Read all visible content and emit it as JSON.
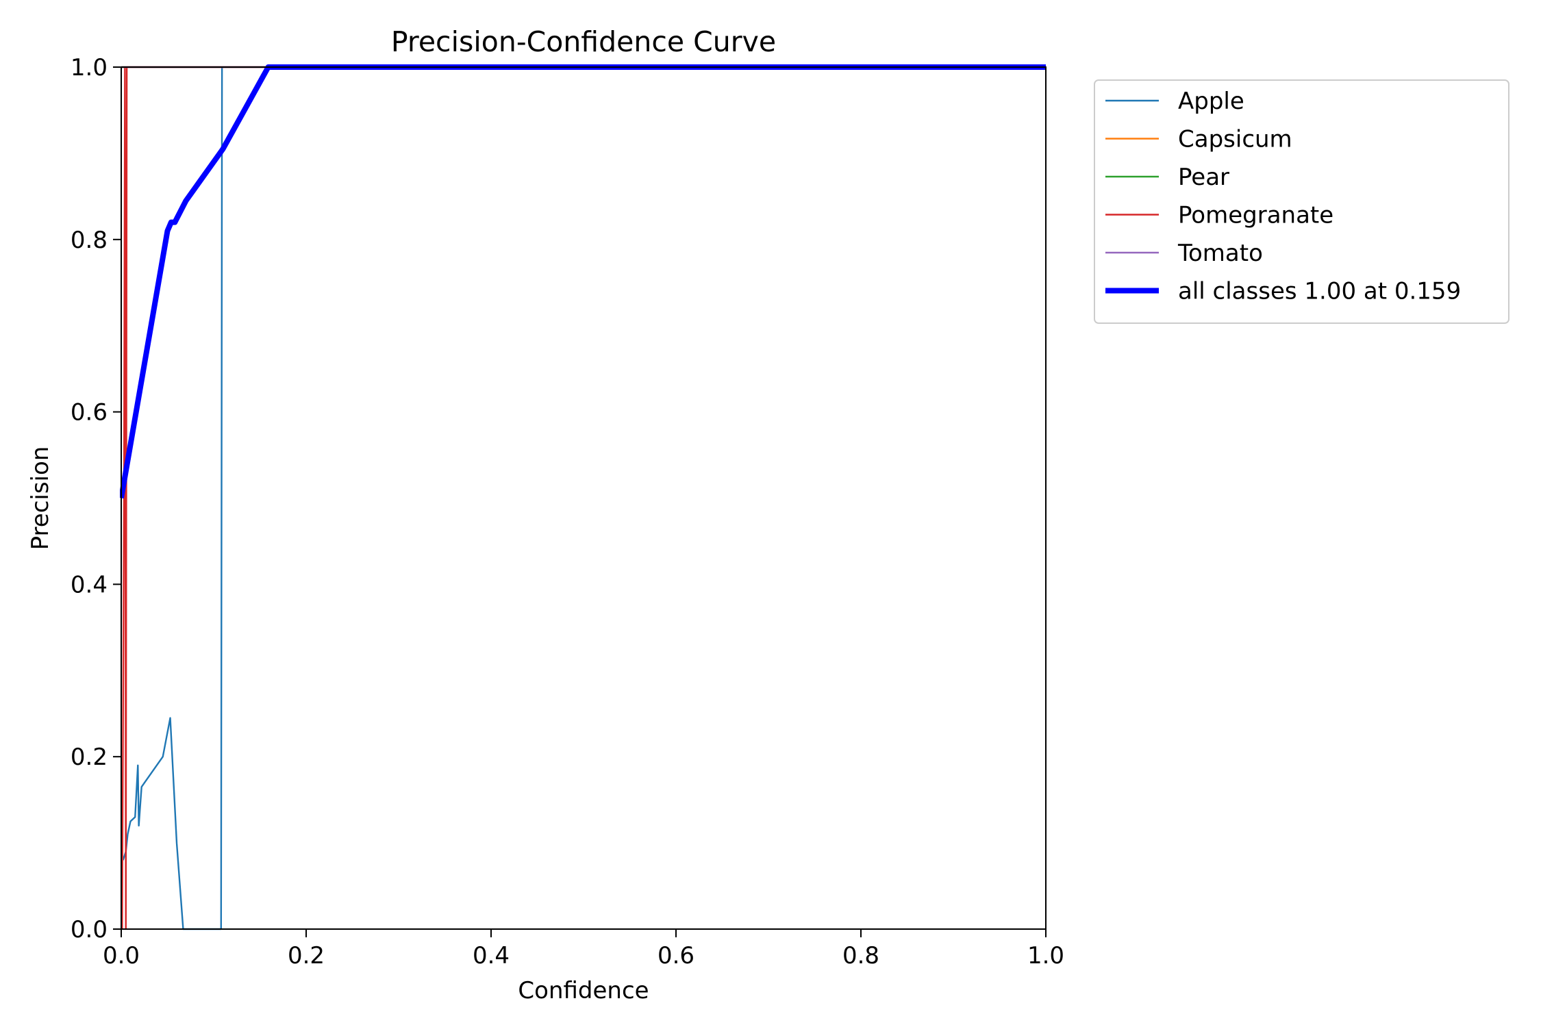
{
  "chart_data": {
    "type": "line",
    "title": "Precision-Confidence Curve",
    "xlabel": "Confidence",
    "ylabel": "Precision",
    "xlim": [
      0,
      1
    ],
    "ylim": [
      0,
      1
    ],
    "xticks": [
      "0.0",
      "0.2",
      "0.4",
      "0.6",
      "0.8",
      "1.0"
    ],
    "yticks": [
      "0.0",
      "0.2",
      "0.4",
      "0.6",
      "0.8",
      "1.0"
    ],
    "grid": false,
    "legend_placement": "outside-upper-right",
    "series": [
      {
        "name": "Apple",
        "color": "#1f77b4",
        "width": "thin",
        "points": [
          [
            0.002,
            0.08
          ],
          [
            0.005,
            0.09
          ],
          [
            0.007,
            0.11
          ],
          [
            0.01,
            0.125
          ],
          [
            0.015,
            0.13
          ],
          [
            0.018,
            0.19
          ],
          [
            0.019,
            0.12
          ],
          [
            0.022,
            0.165
          ],
          [
            0.045,
            0.2
          ],
          [
            0.053,
            0.245
          ],
          [
            0.06,
            0.1
          ],
          [
            0.067,
            0.0
          ],
          [
            0.108,
            0.0
          ],
          [
            0.109,
            1.0
          ],
          [
            1.0,
            1.0
          ]
        ]
      },
      {
        "name": "Capsicum",
        "color": "#ff7f0e",
        "width": "thin",
        "points": [
          [
            0.0,
            1.0
          ],
          [
            1.0,
            1.0
          ]
        ]
      },
      {
        "name": "Pear",
        "color": "#2ca02c",
        "width": "thin",
        "points": [
          [
            0.0,
            1.0
          ],
          [
            1.0,
            1.0
          ]
        ]
      },
      {
        "name": "Pomegranate",
        "color": "#d62728",
        "width": "thin",
        "points": [
          [
            0.001,
            0.0
          ],
          [
            0.003,
            0.5
          ],
          [
            0.004,
            1.0
          ],
          [
            0.005,
            0.0
          ],
          [
            0.006,
            1.0
          ],
          [
            1.0,
            1.0
          ]
        ]
      },
      {
        "name": "Tomato",
        "color": "#9467bd",
        "width": "thin",
        "points": [
          [
            0.0,
            1.0
          ],
          [
            1.0,
            1.0
          ]
        ]
      },
      {
        "name": "all classes 1.00 at 0.159",
        "color": "#0000ff",
        "width": "thick",
        "points": [
          [
            0.0,
            0.5
          ],
          [
            0.05,
            0.81
          ],
          [
            0.054,
            0.82
          ],
          [
            0.058,
            0.82
          ],
          [
            0.07,
            0.845
          ],
          [
            0.11,
            0.905
          ],
          [
            0.159,
            1.0
          ],
          [
            1.0,
            1.0
          ]
        ]
      }
    ]
  }
}
